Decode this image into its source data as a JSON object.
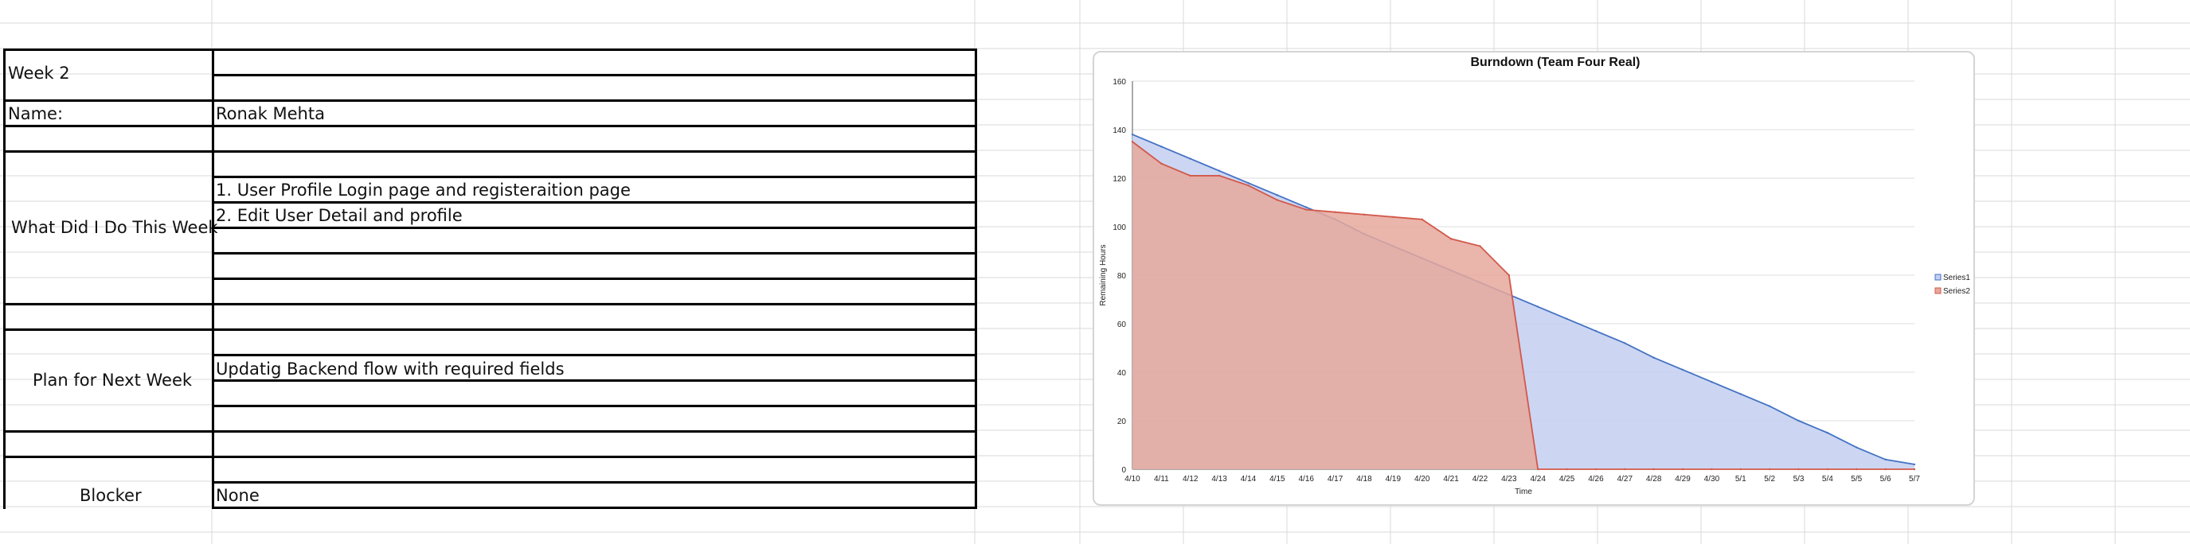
{
  "sheet": {
    "week_label": "Week 2",
    "name_label": "Name:",
    "name_value": "Ronak Mehta",
    "did_label": "What Did I Do This Week",
    "did_items": [
      "1. User Profile Login page and registeraition page",
      "2. Edit User Detail and profile"
    ],
    "plan_label": "Plan for Next Week",
    "plan_value": "Updatig Backend flow with required fields",
    "blocker_label": "Blocker",
    "blocker_value": "None"
  },
  "chart_data": {
    "type": "area",
    "title": "Burndown (Team Four Real)",
    "xlabel": "Time",
    "ylabel": "Remaining  Hours",
    "ylim": [
      0,
      160
    ],
    "yticks": [
      0,
      20,
      40,
      60,
      80,
      100,
      120,
      140,
      160
    ],
    "grid": true,
    "legend_position": "right",
    "categories": [
      "4/10",
      "4/11",
      "4/12",
      "4/13",
      "4/14",
      "4/15",
      "4/16",
      "4/17",
      "4/18",
      "4/19",
      "4/20",
      "4/21",
      "4/22",
      "4/23",
      "4/24",
      "4/25",
      "4/26",
      "4/27",
      "4/28",
      "4/29",
      "4/30",
      "5/1",
      "5/2",
      "5/3",
      "5/4",
      "5/5",
      "5/6",
      "5/7"
    ],
    "series": [
      {
        "name": "Series1",
        "color": "#4472c4",
        "fill": "#c3cff0",
        "values": [
          138,
          133,
          128,
          123,
          118,
          113,
          108,
          103,
          97,
          92,
          87,
          82,
          77,
          72,
          67,
          62,
          57,
          52,
          46,
          41,
          36,
          31,
          26,
          20,
          15,
          9,
          4,
          2
        ]
      },
      {
        "name": "Series2",
        "color": "#d2584a",
        "fill": "#e6a89c",
        "values": [
          135,
          126,
          121,
          121,
          117,
          111,
          107,
          106,
          105,
          104,
          103,
          95,
          92,
          80,
          0,
          0,
          0,
          0,
          0,
          0,
          0,
          0,
          0,
          0,
          0,
          0,
          0,
          0
        ]
      }
    ]
  }
}
